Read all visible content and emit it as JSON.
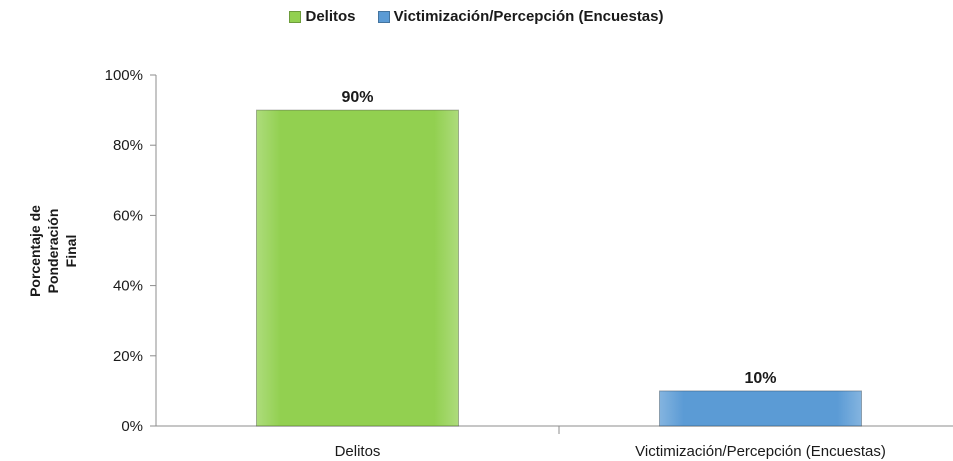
{
  "chart_data": {
    "type": "bar",
    "categories": [
      "Delitos",
      "Victimización/Percepción (Encuestas)"
    ],
    "series": [
      {
        "name": "Delitos",
        "color": "#92d050",
        "values": [
          90,
          null
        ]
      },
      {
        "name": "Victimización/Percepción (Encuestas)",
        "color": "#5b9bd5",
        "values": [
          null,
          10
        ]
      }
    ],
    "values": [
      90,
      10
    ],
    "data_labels": [
      "90%",
      "10%"
    ],
    "ylabel": "Porcentaje de Ponderación Final",
    "ylabel_lines": [
      "Porcentaje de",
      "Ponderación",
      "Final"
    ],
    "xlabel": "",
    "ylim": [
      0,
      100
    ],
    "yticks": [
      0,
      20,
      40,
      60,
      80,
      100
    ],
    "ytick_labels": [
      "0%",
      "20%",
      "40%",
      "60%",
      "80%",
      "100%"
    ],
    "legend_position": "top",
    "grid": false
  }
}
